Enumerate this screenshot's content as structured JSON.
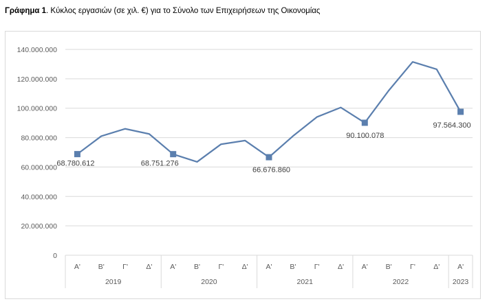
{
  "header": {
    "title_bold": "Γράφημα 1",
    "title_rest": ". Κύκλος εργασιών (σε χιλ. €) για το Σύνολο των Επιχειρήσεων της Οικονομίας"
  },
  "chart_data": {
    "type": "line",
    "title": "Γράφημα 1. Κύκλος εργασιών (σε χιλ. €) για το Σύνολο των Επιχειρήσεων της Οικονομίας",
    "xlabel": "",
    "ylabel": "",
    "ylim": [
      0,
      140000000
    ],
    "yticks": [
      0,
      20000000,
      40000000,
      60000000,
      80000000,
      100000000,
      120000000,
      140000000
    ],
    "ytick_labels": [
      "0",
      "20.000.000",
      "40.000.000",
      "60.000.000",
      "80.000.000",
      "100.000.000",
      "120.000.000",
      "140.000.000"
    ],
    "grid": true,
    "legend": "none",
    "color": "#5b7fae",
    "years": [
      {
        "label": "2019",
        "quarters": [
          "Α'",
          "Β'",
          "Γ'",
          "Δ'"
        ]
      },
      {
        "label": "2020",
        "quarters": [
          "Α'",
          "Β'",
          "Γ'",
          "Δ'"
        ]
      },
      {
        "label": "2021",
        "quarters": [
          "Α'",
          "Β'",
          "Γ'",
          "Δ'"
        ]
      },
      {
        "label": "2022",
        "quarters": [
          "Α'",
          "Β'",
          "Γ'",
          "Δ'"
        ]
      },
      {
        "label": "2023",
        "quarters": [
          "Α'"
        ]
      }
    ],
    "values": [
      68780612,
      81000000,
      86000000,
      82500000,
      68751276,
      63500000,
      75500000,
      78000000,
      66676860,
      81000000,
      94000000,
      100500000,
      90100078,
      112000000,
      131500000,
      126500000,
      97564300
    ],
    "markers": [
      {
        "index": 0,
        "label": "68.780.612"
      },
      {
        "index": 4,
        "label": "68.751.276"
      },
      {
        "index": 8,
        "label": "66.676.860"
      },
      {
        "index": 12,
        "label": "90.100.078"
      },
      {
        "index": 16,
        "label": "97.564.300"
      }
    ]
  }
}
